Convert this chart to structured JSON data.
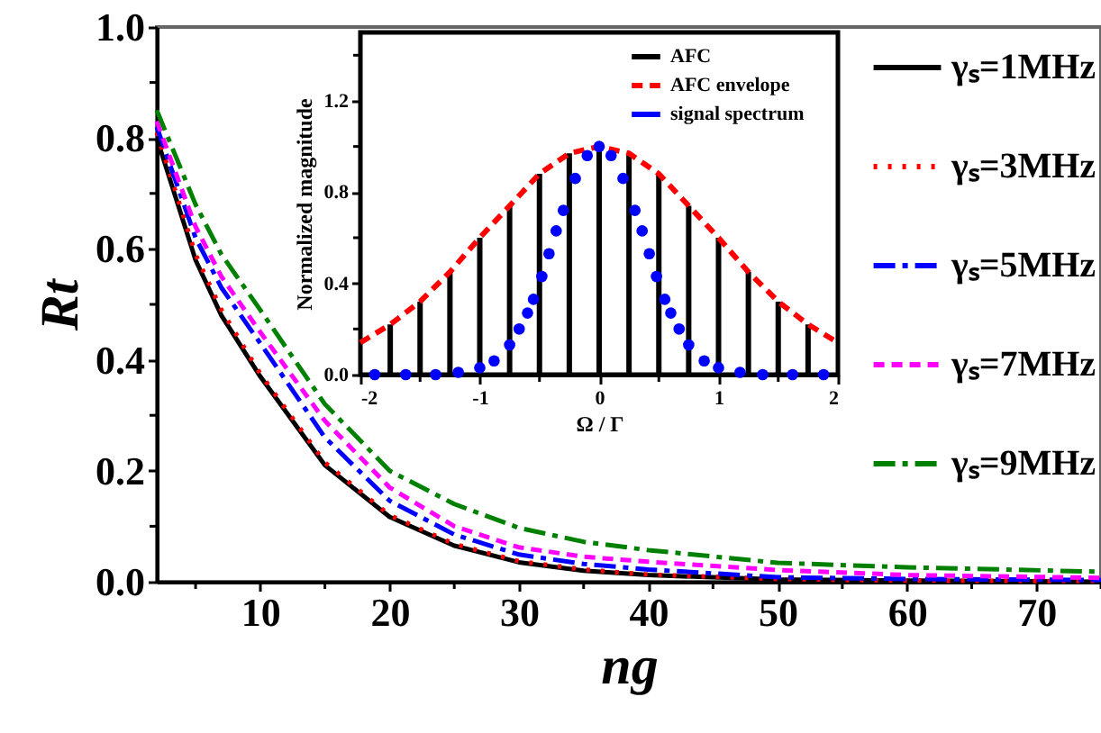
{
  "chart_data": [
    {
      "type": "line",
      "xlabel": "ng",
      "ylabel": "Rt",
      "xlim": [
        2,
        75
      ],
      "ylim": [
        0,
        1
      ],
      "xticks": [
        {
          "value": 5,
          "label": null
        },
        10,
        {
          "value": 15,
          "label": null
        },
        20,
        {
          "value": 25,
          "label": null
        },
        30,
        {
          "value": 35,
          "label": null
        },
        40,
        {
          "value": 45,
          "label": null
        },
        50,
        {
          "value": 55,
          "label": null
        },
        60,
        {
          "value": 65,
          "label": null
        },
        70,
        {
          "value": 75,
          "label": null
        }
      ],
      "yticks": [
        {
          "value": 0,
          "label": "0.0"
        },
        {
          "value": 0.1,
          "label": null
        },
        {
          "value": 0.2,
          "label": "0.2"
        },
        {
          "value": 0.3,
          "label": null
        },
        {
          "value": 0.4,
          "label": "0.4"
        },
        {
          "value": 0.5,
          "label": null
        },
        {
          "value": 0.6,
          "label": "0.6"
        },
        {
          "value": 0.7,
          "label": null
        },
        {
          "value": 0.8,
          "label": "0.8"
        },
        {
          "value": 0.9,
          "label": null
        },
        {
          "value": 1,
          "label": "1.0"
        }
      ],
      "x": [
        2,
        5,
        7,
        10,
        15,
        20,
        25,
        30,
        35,
        40,
        50,
        60,
        75
      ],
      "series": [
        {
          "name": "γₛ=1MHz",
          "color": "#000000",
          "line_style": "solid",
          "values": [
            0.8,
            0.58,
            0.48,
            0.37,
            0.21,
            0.117,
            0.065,
            0.035,
            0.02,
            0.012,
            0.004,
            0.002,
            0.0
          ]
        },
        {
          "name": "γₛ=3MHz",
          "color": "#ff0000",
          "line_style": "dotted",
          "values": [
            0.81,
            0.59,
            0.49,
            0.375,
            0.215,
            0.12,
            0.068,
            0.037,
            0.022,
            0.013,
            0.005,
            0.002,
            0.001
          ]
        },
        {
          "name": "γₛ=5MHz",
          "color": "#0000ff",
          "line_style": "dashdot",
          "values": [
            0.82,
            0.62,
            0.53,
            0.43,
            0.26,
            0.146,
            0.085,
            0.049,
            0.032,
            0.022,
            0.008,
            0.005,
            0.003
          ]
        },
        {
          "name": "γₛ=7MHz",
          "color": "#ff00ff",
          "line_style": "dashed",
          "values": [
            0.83,
            0.64,
            0.55,
            0.45,
            0.29,
            0.17,
            0.1,
            0.062,
            0.045,
            0.036,
            0.021,
            0.012,
            0.007
          ]
        },
        {
          "name": "γₛ=9MHz",
          "color": "#008000",
          "line_style": "dashdot",
          "values": [
            0.85,
            0.68,
            0.59,
            0.49,
            0.32,
            0.2,
            0.14,
            0.097,
            0.072,
            0.057,
            0.034,
            0.026,
            0.018
          ]
        }
      ],
      "legend": "top right",
      "grid": false
    },
    {
      "type": "line",
      "xlabel": "Ω / Γ",
      "ylabel": "Normalized magnitude",
      "xlim": [
        -2,
        2
      ],
      "ylim": [
        0,
        1.5
      ],
      "xticks": [
        -2,
        {
          "value": -1.5,
          "label": null
        },
        -1,
        {
          "value": -0.5,
          "label": null
        },
        0,
        {
          "value": 0.5,
          "label": null
        },
        1,
        {
          "value": 1.5,
          "label": null
        },
        2
      ],
      "yticks": [
        {
          "value": 0,
          "label": "0.0"
        },
        {
          "value": 0.2,
          "label": null
        },
        {
          "value": 0.4,
          "label": "0.4"
        },
        {
          "value": 0.6,
          "label": null
        },
        {
          "value": 0.8,
          "label": "0.8"
        },
        {
          "value": 1,
          "label": null
        },
        {
          "value": 1.2,
          "label": "1.2"
        },
        {
          "value": 1.4,
          "label": null
        }
      ],
      "series": [
        {
          "name": "AFC",
          "type": "bar",
          "color": "#000000",
          "x": [
            -1.75,
            -1.5,
            -1.25,
            -1,
            -0.75,
            -0.5,
            -0.25,
            0,
            0.25,
            0.5,
            0.75,
            1,
            1.25,
            1.5,
            1.75
          ],
          "values": [
            0.22,
            0.32,
            0.45,
            0.6,
            0.74,
            0.88,
            0.97,
            1.0,
            0.97,
            0.88,
            0.74,
            0.6,
            0.45,
            0.32,
            0.22
          ]
        },
        {
          "name": "AFC envelope",
          "type": "line",
          "line_style": "dashed",
          "color": "#ff0000",
          "x": [
            -2,
            -1.75,
            -1.5,
            -1.25,
            -1,
            -0.75,
            -0.5,
            -0.25,
            0,
            0.25,
            0.5,
            0.75,
            1,
            1.25,
            1.5,
            1.75,
            2
          ],
          "values": [
            0.14,
            0.22,
            0.32,
            0.45,
            0.6,
            0.74,
            0.88,
            0.97,
            1.0,
            0.97,
            0.88,
            0.74,
            0.6,
            0.45,
            0.32,
            0.22,
            0.14
          ]
        },
        {
          "name": "signal spectrum",
          "type": "scatter",
          "color": "#0000ff",
          "x": [
            -1.88,
            -1.62,
            -1.37,
            -1.18,
            -1,
            -0.88,
            -0.75,
            -0.67,
            -0.6,
            -0.55,
            -0.48,
            -0.42,
            -0.36,
            -0.3,
            -0.2,
            -0.1,
            0,
            0.1,
            0.2,
            0.3,
            0.36,
            0.42,
            0.48,
            0.55,
            0.6,
            0.67,
            0.75,
            0.88,
            1,
            1.18,
            1.37,
            1.62,
            1.88
          ],
          "values": [
            0,
            0,
            0,
            0.01,
            0.03,
            0.06,
            0.13,
            0.2,
            0.27,
            0.33,
            0.43,
            0.53,
            0.63,
            0.72,
            0.86,
            0.96,
            1.0,
            0.96,
            0.86,
            0.72,
            0.63,
            0.53,
            0.43,
            0.33,
            0.27,
            0.2,
            0.13,
            0.06,
            0.03,
            0.01,
            0,
            0,
            0
          ]
        }
      ],
      "legend": "top right",
      "grid": false
    }
  ]
}
